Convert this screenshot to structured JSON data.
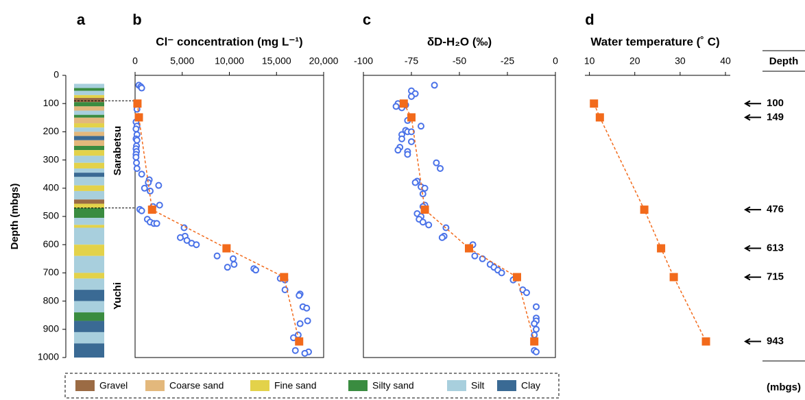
{
  "panel_labels": [
    "a",
    "b",
    "c",
    "d"
  ],
  "y_axis": {
    "label": "Depth (mbgs)",
    "ylim": [
      0,
      1000
    ],
    "yticks": [
      0,
      100,
      200,
      300,
      400,
      500,
      600,
      700,
      800,
      900,
      1000
    ]
  },
  "lithology": {
    "formations": [
      "Sarabetsu",
      "Yuchi"
    ],
    "boundaries": [
      90,
      470
    ],
    "legend": [
      {
        "name": "Gravel",
        "color": "#9b6b44"
      },
      {
        "name": "Coarse sand",
        "color": "#e3b87c"
      },
      {
        "name": "Fine sand",
        "color": "#e3d24a"
      },
      {
        "name": "Silty sand",
        "color": "#3a8c40"
      },
      {
        "name": "Silt",
        "color": "#a8cfdd"
      },
      {
        "name": "Clay",
        "color": "#3a6a94"
      }
    ],
    "layers": [
      {
        "top": 30,
        "bottom": 45,
        "color": "#a8cfdd"
      },
      {
        "top": 45,
        "bottom": 55,
        "color": "#3a8c40"
      },
      {
        "top": 55,
        "bottom": 70,
        "color": "#a8cfdd"
      },
      {
        "top": 70,
        "bottom": 80,
        "color": "#e3d24a"
      },
      {
        "top": 80,
        "bottom": 95,
        "color": "#9b6b44"
      },
      {
        "top": 95,
        "bottom": 110,
        "color": "#3a8c40"
      },
      {
        "top": 110,
        "bottom": 125,
        "color": "#e3b87c"
      },
      {
        "top": 125,
        "bottom": 140,
        "color": "#a8cfdd"
      },
      {
        "top": 140,
        "bottom": 150,
        "color": "#3a8c40"
      },
      {
        "top": 150,
        "bottom": 170,
        "color": "#e3b87c"
      },
      {
        "top": 170,
        "bottom": 185,
        "color": "#e3d24a"
      },
      {
        "top": 185,
        "bottom": 200,
        "color": "#a8cfdd"
      },
      {
        "top": 200,
        "bottom": 215,
        "color": "#e3b87c"
      },
      {
        "top": 215,
        "bottom": 230,
        "color": "#3a6a94"
      },
      {
        "top": 230,
        "bottom": 250,
        "color": "#e3b87c"
      },
      {
        "top": 250,
        "bottom": 265,
        "color": "#3a8c40"
      },
      {
        "top": 265,
        "bottom": 285,
        "color": "#e3d24a"
      },
      {
        "top": 285,
        "bottom": 310,
        "color": "#a8cfdd"
      },
      {
        "top": 310,
        "bottom": 330,
        "color": "#e3d24a"
      },
      {
        "top": 330,
        "bottom": 345,
        "color": "#a8cfdd"
      },
      {
        "top": 345,
        "bottom": 360,
        "color": "#3a6a94"
      },
      {
        "top": 360,
        "bottom": 390,
        "color": "#a8cfdd"
      },
      {
        "top": 390,
        "bottom": 410,
        "color": "#e3d24a"
      },
      {
        "top": 410,
        "bottom": 440,
        "color": "#a8cfdd"
      },
      {
        "top": 440,
        "bottom": 455,
        "color": "#9b6b44"
      },
      {
        "top": 455,
        "bottom": 470,
        "color": "#e3d24a"
      },
      {
        "top": 470,
        "bottom": 505,
        "color": "#3a8c40"
      },
      {
        "top": 505,
        "bottom": 530,
        "color": "#a8cfdd"
      },
      {
        "top": 530,
        "bottom": 540,
        "color": "#e3d24a"
      },
      {
        "top": 540,
        "bottom": 600,
        "color": "#a8cfdd"
      },
      {
        "top": 600,
        "bottom": 640,
        "color": "#e3d24a"
      },
      {
        "top": 640,
        "bottom": 700,
        "color": "#a8cfdd"
      },
      {
        "top": 700,
        "bottom": 720,
        "color": "#e3d24a"
      },
      {
        "top": 720,
        "bottom": 760,
        "color": "#a8cfdd"
      },
      {
        "top": 760,
        "bottom": 800,
        "color": "#3a6a94"
      },
      {
        "top": 800,
        "bottom": 840,
        "color": "#a8cfdd"
      },
      {
        "top": 840,
        "bottom": 870,
        "color": "#3a8c40"
      },
      {
        "top": 870,
        "bottom": 910,
        "color": "#3a6a94"
      },
      {
        "top": 910,
        "bottom": 950,
        "color": "#a8cfdd"
      },
      {
        "top": 950,
        "bottom": 1000,
        "color": "#3a6a94"
      }
    ]
  },
  "chart_data": [
    {
      "type": "scatter",
      "title": "Cl⁻ concentration (mg L⁻¹)",
      "xlim": [
        0,
        20000
      ],
      "xticks": [
        0,
        {
          "value": 5000,
          "label": "5,000"
        },
        {
          "value": 10000,
          "label": "10,000"
        },
        {
          "value": 15000,
          "label": "15,000"
        },
        {
          "value": 20000,
          "label": "20,000"
        }
      ],
      "series": [
        {
          "marker": "circle",
          "color": "#4a72e8",
          "y": [
            35,
            40,
            45,
            100,
            120,
            150,
            165,
            180,
            190,
            210,
            225,
            230,
            250,
            260,
            270,
            280,
            290,
            310,
            330,
            350,
            370,
            380,
            390,
            400,
            410,
            460,
            465,
            475,
            480,
            510,
            520,
            525,
            525,
            540,
            570,
            575,
            585,
            595,
            600,
            640,
            650,
            670,
            680,
            685,
            690,
            720,
            725,
            760,
            775,
            780,
            820,
            825,
            870,
            880,
            920,
            930,
            975,
            980,
            985
          ],
          "x": [
            400,
            600,
            700,
            300,
            200,
            400,
            100,
            200,
            100,
            200,
            100,
            200,
            150,
            100,
            150,
            100,
            100,
            150,
            200,
            700,
            1500,
            1400,
            2500,
            1000,
            1600,
            2600,
            1900,
            500,
            700,
            1300,
            1600,
            2000,
            2300,
            5200,
            5300,
            4800,
            5500,
            6000,
            6500,
            8700,
            10400,
            10500,
            9800,
            12600,
            12800,
            15400,
            15900,
            15900,
            17500,
            17400,
            17800,
            18200,
            18300,
            17500,
            17300,
            16800,
            17000,
            18400,
            18000
          ]
        },
        {
          "marker": "square",
          "color": "#f26a1b",
          "line": true,
          "y": [
            100,
            149,
            476,
            613,
            715,
            943
          ],
          "x": [
            250,
            400,
            1800,
            9700,
            15800,
            17400
          ]
        }
      ]
    },
    {
      "type": "scatter",
      "title": "δD-H₂O (‰)",
      "xlim": [
        -100,
        0
      ],
      "xticks": [
        -100,
        -75,
        -50,
        -25,
        0
      ],
      "series": [
        {
          "marker": "circle",
          "color": "#4a72e8",
          "y": [
            35,
            55,
            65,
            75,
            100,
            110,
            115,
            105,
            180,
            160,
            195,
            200,
            200,
            210,
            225,
            235,
            255,
            265,
            270,
            280,
            310,
            330,
            375,
            380,
            395,
            400,
            420,
            460,
            465,
            490,
            500,
            510,
            520,
            530,
            540,
            570,
            575,
            600,
            610,
            640,
            650,
            670,
            680,
            690,
            700,
            720,
            725,
            760,
            770,
            820,
            860,
            870,
            880,
            900,
            920,
            940,
            975,
            980
          ],
          "x": [
            -63,
            -75,
            -73,
            -75,
            -82,
            -83,
            -80,
            -78,
            -70,
            -77,
            -78,
            -77,
            -75,
            -80,
            -80,
            -75,
            -81,
            -82,
            -77,
            -77,
            -62,
            -60,
            -72,
            -73,
            -70,
            -68,
            -69,
            -68,
            -69,
            -72,
            -70,
            -71,
            -69,
            -66,
            -57,
            -58,
            -59,
            -43,
            -45,
            -42,
            -38,
            -34,
            -32,
            -30,
            -28,
            -21,
            -22,
            -17,
            -15,
            -10,
            -10,
            -10,
            -11,
            -10,
            -11,
            -11,
            -11,
            -10
          ]
        },
        {
          "marker": "square",
          "color": "#f26a1b",
          "line": true,
          "y": [
            100,
            149,
            476,
            613,
            715,
            943
          ],
          "x": [
            -79,
            -75,
            -68,
            -45,
            -20,
            -11
          ]
        }
      ]
    },
    {
      "type": "scatter",
      "title": "Water temperature (˚ C)",
      "xlim": [
        9,
        40
      ],
      "xticks": [
        10,
        20,
        30,
        40
      ],
      "box": false,
      "series": [
        {
          "marker": "square",
          "color": "#f26a1b",
          "line": true,
          "y": [
            100,
            149,
            476,
            613,
            715,
            943
          ],
          "x": [
            11,
            12.3,
            22.1,
            25.8,
            28.6,
            35.7
          ]
        }
      ]
    }
  ],
  "depth_column": {
    "header": "Depth",
    "unit": "(mbgs)",
    "depths": [
      100,
      149,
      476,
      613,
      715,
      943
    ]
  }
}
